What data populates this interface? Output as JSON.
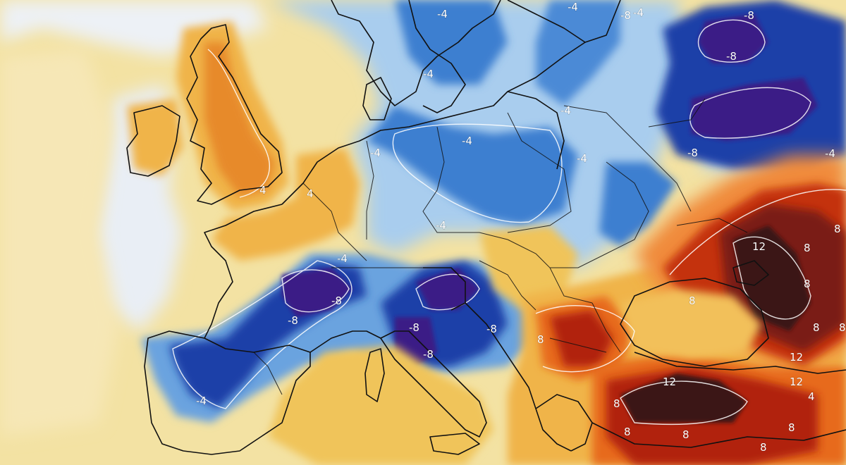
{
  "map": {
    "type": "temperature-anomaly",
    "region": "Europe",
    "palette": {
      "extreme_cold": "#3b1a86",
      "deep_cold": "#1e3fa8",
      "cold": "#3d7fd0",
      "cool": "#a9cdee",
      "neutral": "#edf1f6",
      "mild_warm": "#f4e1a0",
      "warm": "#f0b44a",
      "hot": "#e76b1d",
      "very_hot": "#b1200f",
      "extreme_hot": "#3a1516",
      "coastline": "#111111",
      "contour": "#ffffff"
    },
    "contour_labels": [
      {
        "text": "-8",
        "anomaly": "cold",
        "note": "Russia north"
      },
      {
        "text": "-8",
        "anomaly": "cold"
      },
      {
        "text": "-8",
        "anomaly": "cold"
      },
      {
        "text": "-8",
        "anomaly": "cold"
      },
      {
        "text": "-4",
        "anomaly": "cold"
      },
      {
        "text": "-4",
        "anomaly": "cold"
      },
      {
        "text": "-4",
        "anomaly": "cold"
      },
      {
        "text": "-4",
        "anomaly": "cold"
      },
      {
        "text": "-4",
        "anomaly": "cold"
      },
      {
        "text": "-4",
        "anomaly": "cold"
      },
      {
        "text": "-4",
        "anomaly": "cold"
      },
      {
        "text": "-4",
        "anomaly": "cold"
      },
      {
        "text": "-4",
        "anomaly": "cold"
      },
      {
        "text": "-4",
        "anomaly": "cold"
      },
      {
        "text": "-4",
        "anomaly": "cold"
      },
      {
        "text": "-8",
        "anomaly": "cold"
      },
      {
        "text": "-8",
        "anomaly": "cold"
      },
      {
        "text": "-8",
        "anomaly": "cold"
      },
      {
        "text": "-8",
        "anomaly": "cold"
      },
      {
        "text": "-8",
        "anomaly": "cold"
      },
      {
        "text": "-4",
        "anomaly": "cold"
      },
      {
        "text": "4",
        "anomaly": "warm"
      },
      {
        "text": "4",
        "anomaly": "warm"
      },
      {
        "text": "8",
        "anomaly": "warm"
      },
      {
        "text": "8",
        "anomaly": "warm"
      },
      {
        "text": "8",
        "anomaly": "warm"
      },
      {
        "text": "12",
        "anomaly": "warm"
      },
      {
        "text": "8",
        "anomaly": "warm"
      },
      {
        "text": "8",
        "anomaly": "warm"
      },
      {
        "text": "12",
        "anomaly": "warm"
      },
      {
        "text": "12",
        "anomaly": "warm"
      },
      {
        "text": "12",
        "anomaly": "warm"
      },
      {
        "text": "8",
        "anomaly": "warm"
      },
      {
        "text": "8",
        "anomaly": "warm"
      },
      {
        "text": "8",
        "anomaly": "warm"
      },
      {
        "text": "8",
        "anomaly": "warm"
      },
      {
        "text": "8",
        "anomaly": "warm"
      },
      {
        "text": "4",
        "anomaly": "warm"
      },
      {
        "text": "8",
        "anomaly": "warm"
      },
      {
        "text": "8",
        "anomaly": "warm"
      }
    ]
  }
}
